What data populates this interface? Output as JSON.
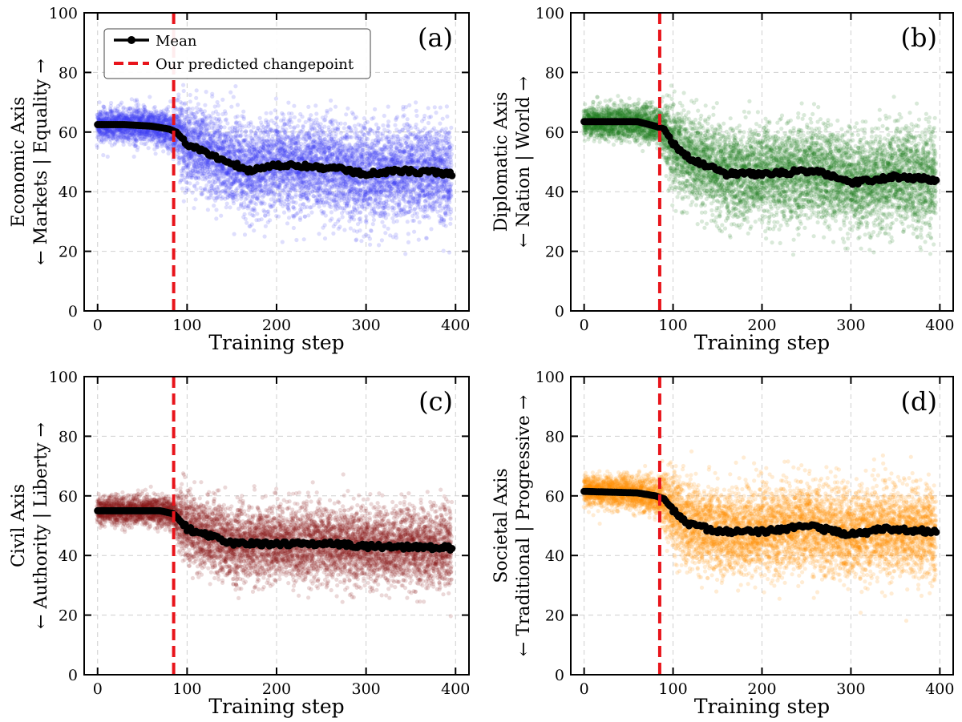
{
  "figure": {
    "legend": {
      "entries": [
        {
          "label": "Mean",
          "color": "#000000",
          "style": "line-marker"
        },
        {
          "label": "Our predicted changepoint",
          "color": "#e8141b",
          "style": "dashed"
        }
      ],
      "placement": "upper-left of panel (a)"
    }
  },
  "chart_data": [
    {
      "type": "scatter",
      "tag": "(a)",
      "xlabel": "Training step",
      "ylabel_line1": "Economic Axis",
      "ylabel_line2": "← Markets | Equality →",
      "xlim": [
        -15,
        415
      ],
      "ylim": [
        0,
        100
      ],
      "xticks": [
        0,
        100,
        200,
        300,
        400
      ],
      "yticks": [
        0,
        20,
        40,
        60,
        80,
        100
      ],
      "grid": true,
      "changepoint_x": 85,
      "scatter_color": "#3a3af5",
      "mean_profile": [
        [
          0,
          62.5
        ],
        [
          30,
          62.5
        ],
        [
          60,
          62
        ],
        [
          80,
          61
        ],
        [
          88,
          60
        ],
        [
          100,
          56
        ],
        [
          130,
          52
        ],
        [
          170,
          47
        ],
        [
          200,
          49
        ],
        [
          260,
          48
        ],
        [
          300,
          46
        ],
        [
          340,
          47
        ],
        [
          400,
          46
        ]
      ],
      "spread_profile": [
        [
          0,
          2.5
        ],
        [
          85,
          3
        ],
        [
          95,
          7
        ],
        [
          200,
          7.5
        ],
        [
          400,
          8
        ]
      ]
    },
    {
      "type": "scatter",
      "tag": "(b)",
      "xlabel": "Training step",
      "ylabel_line1": "Diplomatic Axis",
      "ylabel_line2": "← Nation | World →",
      "xlim": [
        -15,
        415
      ],
      "ylim": [
        0,
        100
      ],
      "xticks": [
        0,
        100,
        200,
        300,
        400
      ],
      "yticks": [
        0,
        20,
        40,
        60,
        80,
        100
      ],
      "grid": true,
      "changepoint_x": 85,
      "scatter_color": "#1f7a1f",
      "mean_profile": [
        [
          0,
          63.5
        ],
        [
          60,
          63.5
        ],
        [
          80,
          62
        ],
        [
          90,
          61
        ],
        [
          100,
          56
        ],
        [
          120,
          51
        ],
        [
          160,
          46
        ],
        [
          200,
          46
        ],
        [
          260,
          47
        ],
        [
          300,
          43
        ],
        [
          350,
          45
        ],
        [
          400,
          44
        ]
      ],
      "spread_profile": [
        [
          0,
          2.5
        ],
        [
          85,
          3
        ],
        [
          95,
          7
        ],
        [
          200,
          7.5
        ],
        [
          400,
          8
        ]
      ]
    },
    {
      "type": "scatter",
      "tag": "(c)",
      "xlabel": "Training step",
      "ylabel_line1": "Civil Axis",
      "ylabel_line2": "← Authority | Liberty →",
      "xlim": [
        -15,
        415
      ],
      "ylim": [
        0,
        100
      ],
      "xticks": [
        0,
        100,
        200,
        300,
        400
      ],
      "yticks": [
        0,
        20,
        40,
        60,
        80,
        100
      ],
      "grid": true,
      "changepoint_x": 85,
      "scatter_color": "#8b1a1a",
      "mean_profile": [
        [
          0,
          55
        ],
        [
          70,
          55
        ],
        [
          85,
          54
        ],
        [
          100,
          49
        ],
        [
          120,
          47
        ],
        [
          150,
          44
        ],
        [
          200,
          44
        ],
        [
          260,
          44
        ],
        [
          300,
          43
        ],
        [
          400,
          42.5
        ]
      ],
      "spread_profile": [
        [
          0,
          2.2
        ],
        [
          85,
          2.5
        ],
        [
          95,
          6
        ],
        [
          200,
          6
        ],
        [
          400,
          6.5
        ]
      ]
    },
    {
      "type": "scatter",
      "tag": "(d)",
      "xlabel": "Training step",
      "ylabel_line1": "Societal Axis",
      "ylabel_line2": "← Traditional | Progressive →",
      "xlim": [
        -15,
        415
      ],
      "ylim": [
        0,
        100
      ],
      "xticks": [
        0,
        100,
        200,
        300,
        400
      ],
      "yticks": [
        0,
        20,
        40,
        60,
        80,
        100
      ],
      "grid": true,
      "changepoint_x": 85,
      "scatter_color": "#ff8c00",
      "mean_profile": [
        [
          0,
          61.5
        ],
        [
          60,
          61
        ],
        [
          80,
          60
        ],
        [
          90,
          59
        ],
        [
          100,
          55
        ],
        [
          115,
          51
        ],
        [
          150,
          48
        ],
        [
          200,
          48
        ],
        [
          250,
          50
        ],
        [
          300,
          47
        ],
        [
          340,
          49
        ],
        [
          400,
          48
        ]
      ],
      "spread_profile": [
        [
          0,
          2.5
        ],
        [
          85,
          3
        ],
        [
          95,
          6.5
        ],
        [
          200,
          7
        ],
        [
          400,
          7.5
        ]
      ]
    }
  ]
}
